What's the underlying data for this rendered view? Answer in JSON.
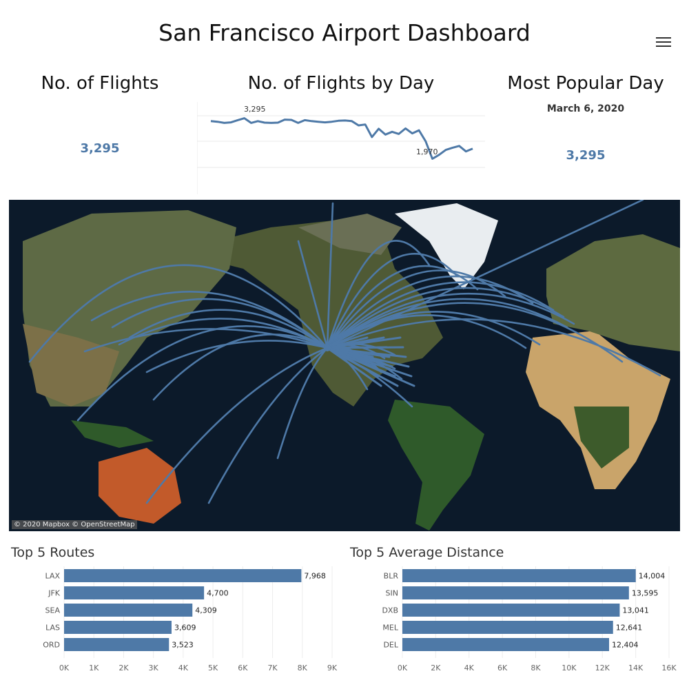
{
  "header": {
    "title": "San Francisco Airport Dashboard",
    "menu_icon": "hamburger-menu-icon"
  },
  "kpi": {
    "flights": {
      "title": "No. of Flights",
      "value": "3,295"
    },
    "by_day": {
      "title": "No. of Flights by Day",
      "max_label": "3,295",
      "min_label": "1,970",
      "series": [
        3200,
        3180,
        3140,
        3160,
        3230,
        3295,
        3140,
        3200,
        3150,
        3140,
        3150,
        3250,
        3240,
        3140,
        3230,
        3200,
        3180,
        3160,
        3180,
        3210,
        3220,
        3200,
        3060,
        3090,
        2680,
        2950,
        2760,
        2850,
        2780,
        2960,
        2800,
        2900,
        2540,
        1970,
        2100,
        2260,
        2330,
        2390,
        2210,
        2300
      ],
      "ylim": [
        900,
        3600
      ]
    },
    "popular_day": {
      "title": "Most Popular Day",
      "date": "March 6, 2020",
      "value": "3,295"
    }
  },
  "map": {
    "attribution": "© 2020 Mapbox © OpenStreetMap",
    "origin": "SFO",
    "route_color": "#4e79a7"
  },
  "top_routes": {
    "title": "Top 5 Routes",
    "chart_data": {
      "type": "bar",
      "categories": [
        "LAX",
        "JFK",
        "SEA",
        "LAS",
        "ORD"
      ],
      "values": [
        7968,
        4700,
        4309,
        3609,
        3523
      ],
      "labels": [
        "7,968",
        "4,700",
        "4,309",
        "3,609",
        "3,523"
      ],
      "ticks": [
        "0K",
        "1K",
        "2K",
        "3K",
        "4K",
        "5K",
        "6K",
        "7K",
        "8K",
        "9K"
      ],
      "xlim": [
        0,
        9000
      ],
      "color": "#4e79a7"
    }
  },
  "top_distance": {
    "title": "Top 5 Average  Distance",
    "chart_data": {
      "type": "bar",
      "categories": [
        "BLR",
        "SIN",
        "DXB",
        "MEL",
        "DEL"
      ],
      "values": [
        14004,
        13595,
        13041,
        12641,
        12404
      ],
      "labels": [
        "14,004",
        "13,595",
        "13,041",
        "12,641",
        "12,404"
      ],
      "ticks": [
        "0K",
        "2K",
        "4K",
        "6K",
        "8K",
        "10K",
        "12K",
        "14K",
        "16K"
      ],
      "xlim": [
        0,
        16000
      ],
      "color": "#4e79a7"
    }
  }
}
